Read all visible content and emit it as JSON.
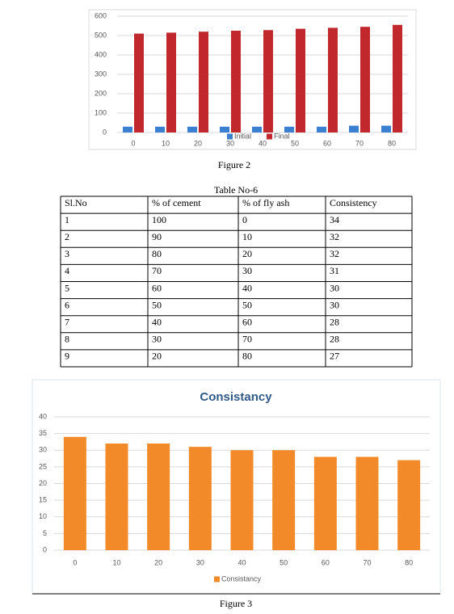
{
  "chart_data": [
    {
      "type": "bar",
      "categories": [
        "0",
        "10",
        "20",
        "30",
        "40",
        "50",
        "60",
        "70",
        "80"
      ],
      "series": [
        {
          "name": "Initial",
          "color": "#3a7fd0",
          "values": [
            30,
            30,
            30,
            30,
            30,
            30,
            30,
            35,
            35
          ]
        },
        {
          "name": "Final",
          "color": "#c0282e",
          "values": [
            510,
            515,
            520,
            525,
            528,
            535,
            540,
            545,
            555
          ]
        }
      ],
      "ylim": [
        0,
        600
      ],
      "yticks": [
        0,
        100,
        200,
        300,
        400,
        500,
        600
      ],
      "grid": true,
      "legend": "bottom"
    },
    {
      "type": "bar",
      "title": "Consistancy",
      "categories": [
        "0",
        "10",
        "20",
        "30",
        "40",
        "50",
        "60",
        "70",
        "80"
      ],
      "series": [
        {
          "name": "Consistancy",
          "color": "#f28a2a",
          "values": [
            34,
            32,
            32,
            31,
            30,
            30,
            28,
            28,
            27
          ]
        }
      ],
      "ylim": [
        0,
        40
      ],
      "yticks": [
        0,
        5,
        10,
        15,
        20,
        25,
        30,
        35,
        40
      ],
      "grid": true,
      "legend": "bottom"
    }
  ],
  "figure_captions": [
    "Figure 2",
    "Figure 3"
  ],
  "table": {
    "caption": "Table No-6",
    "header": [
      "Sl.No",
      "% of cement",
      "% of fly ash",
      "Consistency"
    ],
    "rows": [
      [
        1,
        100,
        0,
        34
      ],
      [
        2,
        90,
        10,
        32
      ],
      [
        3,
        80,
        20,
        32
      ],
      [
        4,
        70,
        30,
        31
      ],
      [
        5,
        60,
        40,
        30
      ],
      [
        6,
        50,
        50,
        30
      ],
      [
        7,
        40,
        60,
        28
      ],
      [
        8,
        30,
        70,
        28
      ],
      [
        9,
        20,
        80,
        27
      ]
    ]
  }
}
